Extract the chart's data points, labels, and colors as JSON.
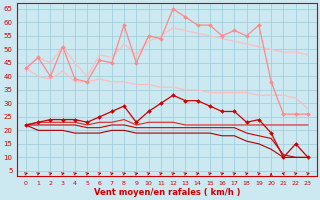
{
  "x": [
    0,
    1,
    2,
    3,
    4,
    5,
    6,
    7,
    8,
    9,
    10,
    11,
    12,
    13,
    14,
    15,
    16,
    17,
    18,
    19,
    20,
    21,
    22,
    23
  ],
  "series": [
    {
      "name": "rafales_upper_envelope",
      "color": "#ffbbbb",
      "linewidth": 0.8,
      "marker": null,
      "markersize": 0,
      "values": [
        43,
        47,
        45,
        51,
        45,
        40,
        48,
        47,
        52,
        48,
        53,
        55,
        58,
        57,
        56,
        55,
        54,
        53,
        52,
        51,
        50,
        49,
        49,
        48
      ]
    },
    {
      "name": "rafales_lower_envelope",
      "color": "#ffbbbb",
      "linewidth": 0.8,
      "marker": null,
      "markersize": 0,
      "values": [
        43,
        40,
        39,
        42,
        38,
        38,
        39,
        38,
        38,
        37,
        37,
        36,
        36,
        35,
        35,
        34,
        34,
        34,
        34,
        33,
        33,
        33,
        32,
        28
      ]
    },
    {
      "name": "rafales_jagged",
      "color": "#ff8888",
      "linewidth": 0.9,
      "marker": "D",
      "markersize": 2.0,
      "values": [
        43,
        47,
        40,
        51,
        39,
        38,
        46,
        45,
        59,
        45,
        55,
        54,
        65,
        62,
        59,
        59,
        55,
        57,
        55,
        59,
        38,
        26,
        26,
        26
      ]
    },
    {
      "name": "vent_max",
      "color": "#cc0000",
      "linewidth": 0.9,
      "marker": "D",
      "markersize": 2.0,
      "values": [
        22,
        23,
        24,
        24,
        24,
        23,
        25,
        27,
        29,
        23,
        27,
        30,
        33,
        31,
        31,
        29,
        27,
        27,
        23,
        24,
        19,
        10,
        15,
        10
      ]
    },
    {
      "name": "vent_moy_upper",
      "color": "#dd2222",
      "linewidth": 0.8,
      "marker": null,
      "markersize": 0,
      "values": [
        22,
        23,
        23,
        23,
        23,
        22,
        23,
        23,
        24,
        22,
        23,
        23,
        23,
        22,
        22,
        22,
        22,
        22,
        22,
        22,
        22,
        22,
        22,
        22
      ]
    },
    {
      "name": "vent_moy_mid",
      "color": "#cc0000",
      "linewidth": 0.8,
      "marker": null,
      "markersize": 0,
      "values": [
        22,
        22,
        22,
        22,
        22,
        21,
        21,
        22,
        22,
        21,
        21,
        21,
        21,
        21,
        21,
        21,
        21,
        21,
        19,
        18,
        17,
        11,
        10,
        10
      ]
    },
    {
      "name": "vent_min",
      "color": "#aa0000",
      "linewidth": 0.8,
      "marker": null,
      "markersize": 0,
      "values": [
        22,
        20,
        20,
        20,
        19,
        19,
        19,
        20,
        20,
        19,
        19,
        19,
        19,
        19,
        19,
        19,
        18,
        18,
        16,
        15,
        13,
        10,
        10,
        10
      ]
    }
  ],
  "ylim": [
    3,
    67
  ],
  "yticks": [
    5,
    10,
    15,
    20,
    25,
    30,
    35,
    40,
    45,
    50,
    55,
    60,
    65
  ],
  "xlabel": "Vent moyen/en rafales ( km/h )",
  "bg_color": "#cce8f0",
  "grid_color": "#99ccdd",
  "tick_color": "#cc0000",
  "arrow_angles_deg": [
    45,
    45,
    45,
    45,
    45,
    45,
    45,
    45,
    45,
    45,
    45,
    45,
    45,
    45,
    45,
    45,
    45,
    45,
    45,
    45,
    0,
    315,
    45,
    45
  ]
}
